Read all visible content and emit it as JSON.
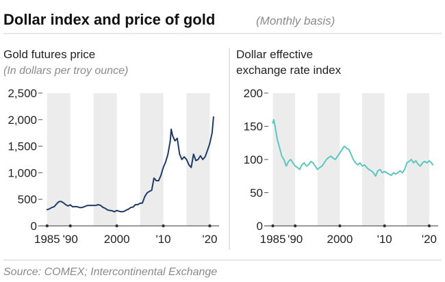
{
  "figure": {
    "title": "Dollar index and price of gold",
    "subtitle": "(Monthly basis)",
    "source": "Source: COMEX; Intercontinental Exchange"
  },
  "chart_data": [
    {
      "type": "line",
      "title": "Gold futures price",
      "subtitle": "(In dollars per troy ounce)",
      "xlim": [
        1984,
        2022
      ],
      "ylim": [
        0,
        2500
      ],
      "yticks": [
        0,
        500,
        1000,
        1500,
        2000,
        2500
      ],
      "ytick_labels": [
        "0",
        "500",
        "1,000",
        "1,500",
        "2,000",
        "2,500"
      ],
      "xticks": [
        1985,
        1990,
        2000,
        2010,
        2020
      ],
      "xtick_labels": [
        "1985",
        "'90",
        "2000",
        "'10",
        "'20"
      ],
      "shaded_bands": [
        [
          1985,
          1990
        ],
        [
          1995,
          2000
        ],
        [
          2005,
          2010
        ],
        [
          2015,
          2020
        ]
      ],
      "grid": false,
      "color": "#1e3a66",
      "series": [
        {
          "x": [
            1985.0,
            1985.5,
            1986.0,
            1986.5,
            1987.0,
            1987.5,
            1988.0,
            1988.5,
            1989.0,
            1989.5,
            1990.0,
            1990.5,
            1991.0,
            1991.5,
            1992.0,
            1992.5,
            1993.0,
            1993.5,
            1994.0,
            1994.5,
            1995.0,
            1995.5,
            1996.0,
            1996.5,
            1997.0,
            1997.5,
            1998.0,
            1998.5,
            1999.0,
            1999.5,
            2000.0,
            2000.5,
            2001.0,
            2001.5,
            2002.0,
            2002.5,
            2003.0,
            2003.5,
            2004.0,
            2004.5,
            2005.0,
            2005.5,
            2006.0,
            2006.5,
            2007.0,
            2007.5,
            2008.0,
            2008.5,
            2009.0,
            2009.5,
            2010.0,
            2010.5,
            2011.0,
            2011.5,
            2011.7,
            2012.0,
            2012.5,
            2013.0,
            2013.5,
            2014.0,
            2014.5,
            2015.0,
            2015.5,
            2016.0,
            2016.5,
            2017.0,
            2017.5,
            2018.0,
            2018.5,
            2019.0,
            2019.5,
            2020.0,
            2020.5,
            2020.8
          ],
          "values": [
            305,
            320,
            345,
            360,
            410,
            455,
            460,
            435,
            400,
            375,
            395,
            360,
            365,
            360,
            345,
            345,
            360,
            380,
            385,
            385,
            385,
            385,
            400,
            385,
            350,
            330,
            300,
            290,
            285,
            265,
            290,
            275,
            265,
            270,
            295,
            315,
            345,
            355,
            400,
            400,
            425,
            430,
            550,
            620,
            650,
            670,
            900,
            850,
            850,
            950,
            1100,
            1200,
            1350,
            1600,
            1820,
            1700,
            1600,
            1650,
            1350,
            1250,
            1300,
            1250,
            1150,
            1100,
            1350,
            1230,
            1250,
            1320,
            1250,
            1300,
            1420,
            1550,
            1750,
            2050
          ]
        }
      ]
    },
    {
      "type": "line",
      "title": "Dollar effective exchange rate index",
      "title_lines": [
        "Dollar effective",
        "exchange rate index"
      ],
      "xlim": [
        1984,
        2022
      ],
      "ylim": [
        0,
        200
      ],
      "yticks": [
        0,
        50,
        100,
        150,
        200
      ],
      "ytick_labels": [
        "0",
        "50",
        "100",
        "150",
        "200"
      ],
      "xticks": [
        1985,
        1990,
        2000,
        2010,
        2020
      ],
      "xtick_labels": [
        "1985",
        "'90",
        "2000",
        "'10",
        "'20"
      ],
      "shaded_bands": [
        [
          1985,
          1990
        ],
        [
          1995,
          2000
        ],
        [
          2005,
          2010
        ],
        [
          2015,
          2020
        ]
      ],
      "grid": false,
      "color": "#5cc6c0",
      "series": [
        {
          "x": [
            1985.0,
            1985.2,
            1985.5,
            1986.0,
            1986.5,
            1987.0,
            1987.5,
            1988.0,
            1988.5,
            1989.0,
            1989.5,
            1990.0,
            1990.5,
            1991.0,
            1991.5,
            1992.0,
            1992.5,
            1993.0,
            1993.5,
            1994.0,
            1994.5,
            1995.0,
            1995.5,
            1996.0,
            1996.5,
            1997.0,
            1997.5,
            1998.0,
            1998.5,
            1999.0,
            1999.5,
            2000.0,
            2000.5,
            2001.0,
            2001.5,
            2002.0,
            2002.5,
            2003.0,
            2003.5,
            2004.0,
            2004.5,
            2005.0,
            2005.5,
            2006.0,
            2006.5,
            2007.0,
            2007.5,
            2008.0,
            2008.5,
            2009.0,
            2009.5,
            2010.0,
            2010.5,
            2011.0,
            2011.5,
            2012.0,
            2012.5,
            2013.0,
            2013.5,
            2014.0,
            2014.5,
            2015.0,
            2015.5,
            2016.0,
            2016.5,
            2017.0,
            2017.5,
            2018.0,
            2018.5,
            2019.0,
            2019.5,
            2020.0,
            2020.5,
            2020.8
          ],
          "values": [
            155,
            160,
            150,
            130,
            118,
            105,
            100,
            90,
            97,
            100,
            95,
            90,
            88,
            85,
            92,
            95,
            90,
            92,
            97,
            95,
            90,
            85,
            88,
            90,
            95,
            100,
            103,
            105,
            102,
            100,
            105,
            110,
            115,
            120,
            117,
            115,
            108,
            100,
            95,
            92,
            95,
            90,
            92,
            88,
            85,
            83,
            80,
            75,
            83,
            85,
            80,
            82,
            80,
            78,
            76,
            80,
            78,
            80,
            83,
            80,
            85,
            95,
            97,
            100,
            95,
            98,
            93,
            90,
            95,
            97,
            95,
            98,
            95,
            92
          ]
        }
      ]
    }
  ]
}
